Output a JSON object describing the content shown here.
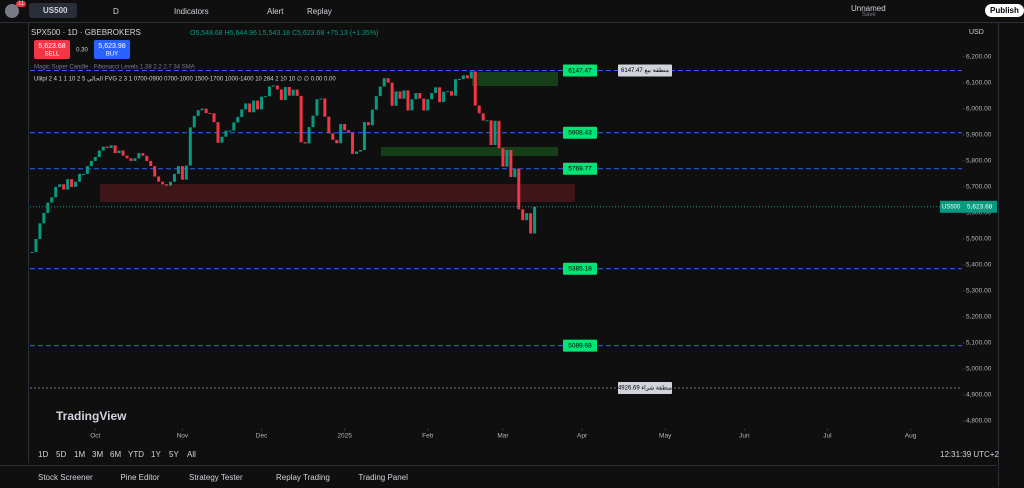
{
  "toolbar": {
    "badge": "11",
    "symbol": "US500",
    "interval": "D",
    "indicators": "Indicators",
    "alert": "Alert",
    "replay": "Replay",
    "layout": "Unnamed",
    "save": "Save",
    "publish": "Publish"
  },
  "legend": {
    "title": "SPX500 · 1D · GBEBROKERS",
    "ohlc": "O5,548.68 H5,644.96 L5,543.18 C5,623.68 +75.13 (+1.35%)",
    "sell_price": "5,623.68",
    "sell": "SELL",
    "spread": "0.30",
    "buy_price": "5,623.98",
    "buy": "BUY",
    "indicator1": "Magic Super Candle · Fibonacci Levels 1.38 2.2 2.7 34 SMA",
    "indicator2": "Ulilpl 2 4 1 1 10 2 5 الحالي FVG 2 3 1 0700-0900 0700-1000 1500-1700 1000-1400 10 284 2 10 10  ∅  ∅ 0.00 0.00"
  },
  "chart_data": {
    "type": "candlestick",
    "up_color": "#089981",
    "down_color": "#f23645",
    "closes": [
      5450,
      5500,
      5560,
      5600,
      5640,
      5660,
      5700,
      5710,
      5690,
      5730,
      5700,
      5720,
      5750,
      5750,
      5780,
      5800,
      5815,
      5840,
      5855,
      5850,
      5860,
      5830,
      5840,
      5820,
      5810,
      5800,
      5810,
      5830,
      5820,
      5800,
      5780,
      5740,
      5720,
      5710,
      5705,
      5720,
      5750,
      5780,
      5728,
      5782,
      5929,
      5973,
      5995,
      6001,
      5984,
      5983,
      5949,
      5870,
      5893,
      5916,
      5917,
      5948,
      5969,
      5998,
      6021,
      5987,
      6032,
      5998,
      6047,
      6049,
      6086,
      6090,
      6075,
      6034,
      6084,
      6051,
      6074,
      6050,
      5872,
      5867,
      5930,
      5974,
      6037,
      6040,
      5970,
      5906,
      5881,
      5868,
      5942,
      5918,
      5909,
      5827,
      5836,
      5842,
      5949,
      5937,
      5997,
      6049,
      6086,
      6118,
      6101,
      6012,
      6067,
      6039,
      6071,
      5994,
      6037,
      6061,
      6040,
      5994,
      6037,
      6061,
      6083,
      6026,
      6066,
      6068,
      6051,
      6114,
      6115,
      6129,
      6117,
      6144,
      6013,
      5983,
      5955,
      5956,
      5861,
      5954,
      5849,
      5778,
      5842,
      5738,
      5770,
      5614,
      5572,
      5599,
      5521,
      5623.68
    ],
    "xlim": [
      0,
      235
    ],
    "xticks": [
      {
        "value": 16,
        "label": "Oct"
      },
      {
        "value": 38,
        "label": "Nov"
      },
      {
        "value": 58,
        "label": "Dec"
      },
      {
        "value": 79,
        "label": "2025"
      },
      {
        "value": 100,
        "label": "Feb"
      },
      {
        "value": 119,
        "label": "Mar"
      },
      {
        "value": 139,
        "label": "Apr"
      },
      {
        "value": 160,
        "label": "May"
      },
      {
        "value": 180,
        "label": "Jun"
      },
      {
        "value": 201,
        "label": "Jul"
      },
      {
        "value": 222,
        "label": "Aug"
      }
    ],
    "ylim": [
      4727,
      6311
    ],
    "yticks": [
      {
        "value": 4800,
        "label": "4,800.00"
      },
      {
        "value": 4900,
        "label": "4,900.00"
      },
      {
        "value": 5000,
        "label": "5,000.00"
      },
      {
        "value": 5100,
        "label": "5,100.00"
      },
      {
        "value": 5200,
        "label": "5,200.00"
      },
      {
        "value": 5300,
        "label": "5,300.00"
      },
      {
        "value": 5400,
        "label": "5,400.00"
      },
      {
        "value": 5500,
        "label": "5,500.00"
      },
      {
        "value": 5600,
        "label": "5,600.00"
      },
      {
        "value": 5700,
        "label": "5,700.00"
      },
      {
        "value": 5800,
        "label": "5,800.00"
      },
      {
        "value": 5900,
        "label": "5,900.00"
      },
      {
        "value": 6000,
        "label": "6,000.00"
      },
      {
        "value": 6100,
        "label": "6,100.00"
      },
      {
        "value": 6200,
        "label": "6,200.00"
      }
    ],
    "currency": "USD",
    "last_symbol": "US500",
    "last_price_label": "5,623.68",
    "levels": [
      {
        "value": 6147.47,
        "color": "#00e676"
      },
      {
        "value": 5908.43,
        "color": "#00e676"
      },
      {
        "value": 5769.77,
        "color": "#00e676"
      },
      {
        "value": 5385.18,
        "color": "#00e676"
      },
      {
        "value": 5089.68,
        "color": "#00e676"
      }
    ],
    "zone_labels": [
      {
        "value": 6147.47,
        "label": "6147.47 منطقة بيع"
      },
      {
        "value": 4926.69,
        "label": "4926.69 منطقة شراء"
      }
    ]
  },
  "watermark": "TradingView",
  "bottom": {
    "ranges": [
      "1D",
      "5D",
      "1M",
      "3M",
      "6M",
      "YTD",
      "1Y",
      "5Y",
      "All"
    ],
    "clock": "12:31:39 UTC+2",
    "tabs": [
      "Stock Screener",
      "Pine Editor",
      "Strategy Tester",
      "Replay Trading",
      "Trading Panel"
    ]
  }
}
